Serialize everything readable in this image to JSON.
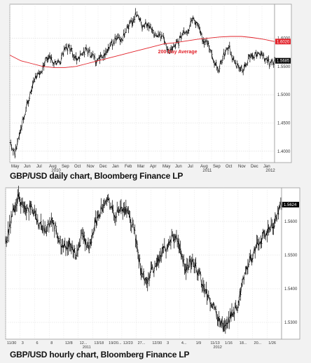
{
  "chart_data": [
    {
      "type": "line",
      "title": "",
      "caption": "GBP/USD daily chart, Bloomberg Finance LP",
      "xlabel": "",
      "ylabel": "",
      "x_tick_labels": [
        "May",
        "Jun",
        "Jul",
        "Aug",
        "Sep",
        "Oct",
        "Nov",
        "Dec",
        "Jan",
        "Feb",
        "Mar",
        "Apr",
        "May",
        "Jun",
        "Jul",
        "Aug",
        "Sep",
        "Oct",
        "Nov",
        "Dec",
        "Jan"
      ],
      "year_labels": [
        {
          "text": "2010",
          "after_tick": 3
        },
        {
          "text": "2011",
          "after_tick": 15
        },
        {
          "text": "2012",
          "after_tick": 20
        }
      ],
      "y_ticks": [
        1.4,
        1.45,
        1.5,
        1.55,
        1.6
      ],
      "y_tick_labels": [
        "1.4000",
        "1.4500",
        "1.5000",
        "1.5500",
        "1.6000"
      ],
      "ylim": [
        1.38,
        1.66
      ],
      "series": [
        {
          "name": "",
          "color": "#000000",
          "values": [
            1.42,
            1.395,
            1.44,
            1.47,
            1.5,
            1.53,
            1.54,
            1.56,
            1.565,
            1.555,
            1.56,
            1.585,
            1.58,
            1.565,
            1.57,
            1.58,
            1.57,
            1.56,
            1.565,
            1.575,
            1.59,
            1.6,
            1.595,
            1.615,
            1.63,
            1.645,
            1.62,
            1.625,
            1.61,
            1.6,
            1.605,
            1.575,
            1.585,
            1.59,
            1.61,
            1.615,
            1.635,
            1.62,
            1.595,
            1.59,
            1.56,
            1.545,
            1.57,
            1.585,
            1.555,
            1.55,
            1.545,
            1.565,
            1.57,
            1.575,
            1.565,
            1.555,
            1.56
          ]
        },
        {
          "name": "200-Day Average",
          "color": "#e2222a",
          "values": [
            1.57,
            1.56,
            1.555,
            1.55,
            1.548,
            1.548,
            1.55,
            1.555,
            1.56,
            1.565,
            1.57,
            1.575,
            1.58,
            1.585,
            1.59,
            1.592,
            1.595,
            1.598,
            1.6,
            1.602,
            1.603,
            1.603,
            1.601,
            1.598,
            1.594
          ]
        }
      ],
      "annotations": [
        {
          "text": "200-Day Average",
          "color": "#e2222a"
        }
      ],
      "price_labels": [
        {
          "text": "1.6020",
          "bg": "#e2222a",
          "fg": "#ffffff"
        },
        {
          "text": "1.5685",
          "bg": "#000000",
          "fg": "#ffffff"
        }
      ],
      "grid": true
    },
    {
      "type": "line",
      "title": "",
      "caption": "GBP/USD hourly chart, Bloomberg Finance LP",
      "xlabel": "",
      "ylabel": "",
      "x_tick_labels": [
        "11/30",
        "3",
        "6",
        "8",
        "12/8",
        "12...",
        "13/18",
        "19/20...",
        "12/23",
        "27...",
        "12/30",
        "3",
        "4...",
        "1/9",
        "11/13",
        "1/16",
        "18...",
        "20...",
        "1/26"
      ],
      "year_labels": [
        {
          "text": "2011",
          "after_tick": 5
        },
        {
          "text": "2012",
          "after_tick": 14
        }
      ],
      "y_ticks": [
        1.53,
        1.54,
        1.55,
        1.56
      ],
      "y_tick_labels": [
        "1.5300",
        "1.5400",
        "1.5500",
        "1.5600"
      ],
      "ylim": [
        1.525,
        1.57
      ],
      "series": [
        {
          "name": "",
          "color": "#000000",
          "values": [
            1.554,
            1.561,
            1.567,
            1.563,
            1.565,
            1.56,
            1.557,
            1.561,
            1.557,
            1.552,
            1.554,
            1.55,
            1.556,
            1.552,
            1.56,
            1.564,
            1.566,
            1.562,
            1.564,
            1.563,
            1.558,
            1.546,
            1.542,
            1.546,
            1.55,
            1.552,
            1.556,
            1.553,
            1.546,
            1.548,
            1.545,
            1.54,
            1.536,
            1.532,
            1.528,
            1.532,
            1.534,
            1.542,
            1.548,
            1.553,
            1.555,
            1.558,
            1.56,
            1.565
          ]
        }
      ],
      "price_labels": [
        {
          "text": "1.5624",
          "bg": "#000000",
          "fg": "#ffffff"
        }
      ],
      "grid": true
    }
  ]
}
